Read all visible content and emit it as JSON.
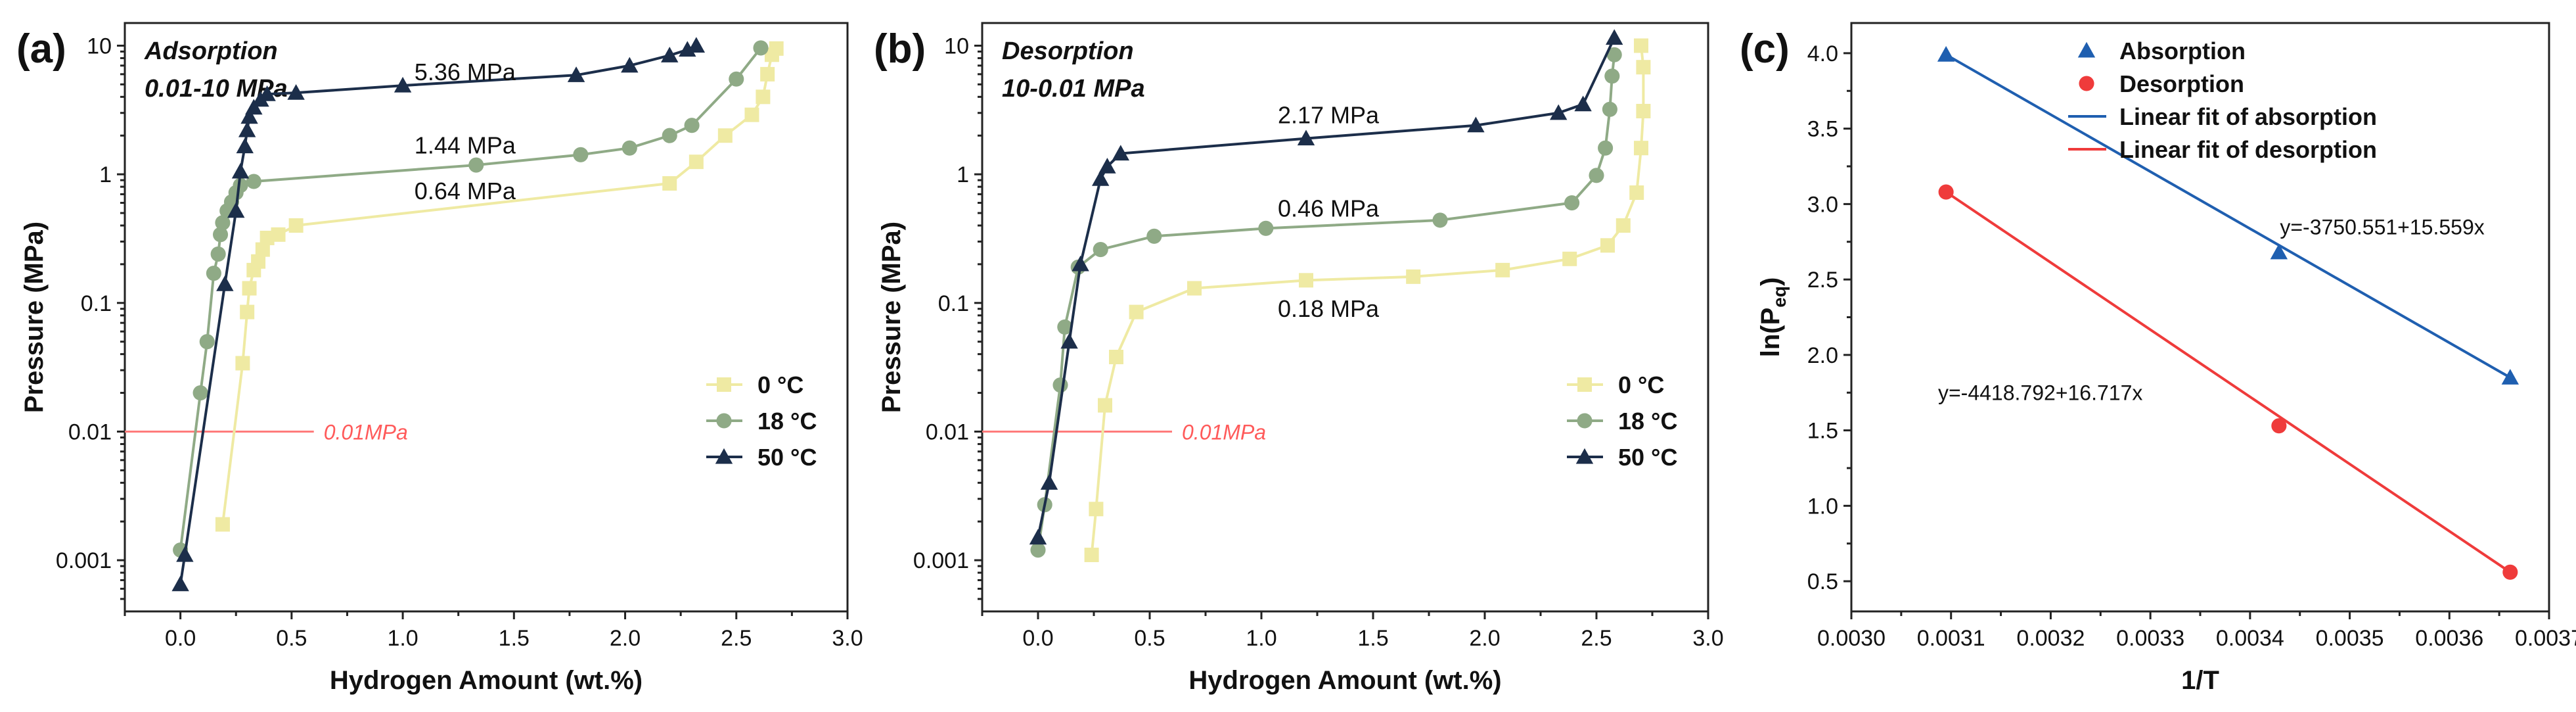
{
  "chart_data": [
    {
      "panel": "(a)",
      "type": "line",
      "title": "Adsorption",
      "subtitle": "0.01-10 MPa",
      "xlabel": "Hydrogen Amount (wt.%)",
      "ylabel": "Pressure (MPa)",
      "xlim": [
        -0.25,
        3.0
      ],
      "ylim": [
        0.0004,
        15
      ],
      "yscale": "log",
      "xticks": [
        "0.0",
        "0.5",
        "1.0",
        "1.5",
        "2.0",
        "2.5",
        "3.0"
      ],
      "yticks": [
        "0.001",
        "0.01",
        "0.1",
        "1",
        "10"
      ],
      "legend": {
        "position": "lower-right",
        "entries": [
          "0 °C",
          "18 °C",
          "50 °C"
        ]
      },
      "reference_line": {
        "y": 0.01,
        "x_range": [
          -0.25,
          0.6
        ],
        "label": "0.01MPa",
        "color": "#ff7b7b"
      },
      "plateau_labels": [
        {
          "text": "5.36 MPa",
          "x": 1.28,
          "y": 5.4
        },
        {
          "text": "1.44 MPa",
          "x": 1.28,
          "y": 1.45
        },
        {
          "text": "0.64 MPa",
          "x": 1.28,
          "y": 0.64
        }
      ],
      "series": [
        {
          "name": "0 °C",
          "color": "#efeaa3",
          "marker": "square",
          "x": [
            0.19,
            0.28,
            0.3,
            0.31,
            0.33,
            0.35,
            0.37,
            0.39,
            0.44,
            0.52,
            2.2,
            2.32,
            2.45,
            2.57,
            2.62,
            2.64,
            2.66,
            2.68
          ],
          "y": [
            0.0019,
            0.034,
            0.085,
            0.13,
            0.18,
            0.21,
            0.26,
            0.32,
            0.34,
            0.4,
            0.85,
            1.25,
            2.0,
            2.9,
            4.0,
            6.0,
            8.5,
            9.5
          ]
        },
        {
          "name": "18 °C",
          "color": "#8faa86",
          "marker": "circle",
          "x": [
            0.0,
            0.09,
            0.12,
            0.15,
            0.17,
            0.18,
            0.19,
            0.21,
            0.23,
            0.25,
            0.27,
            0.33,
            1.33,
            1.8,
            2.02,
            2.2,
            2.3,
            2.5,
            2.61
          ],
          "y": [
            0.0012,
            0.02,
            0.05,
            0.17,
            0.24,
            0.34,
            0.42,
            0.52,
            0.61,
            0.72,
            0.82,
            0.88,
            1.18,
            1.42,
            1.6,
            2.0,
            2.4,
            5.5,
            9.6
          ]
        },
        {
          "name": "50 °C",
          "color": "#1c2e4a",
          "marker": "triangle",
          "x": [
            0.0,
            0.02,
            0.2,
            0.25,
            0.27,
            0.29,
            0.3,
            0.31,
            0.33,
            0.36,
            0.39,
            0.52,
            1.0,
            1.78,
            2.02,
            2.2,
            2.28,
            2.32
          ],
          "y": [
            0.00065,
            0.0011,
            0.14,
            0.52,
            1.05,
            1.65,
            2.2,
            2.8,
            3.3,
            3.8,
            4.2,
            4.3,
            4.9,
            5.9,
            7.0,
            8.4,
            9.3,
            10.0
          ]
        }
      ]
    },
    {
      "panel": "(b)",
      "type": "line",
      "title": "Desorption",
      "subtitle": "10-0.01 MPa",
      "xlabel": "Hydrogen Amount (wt.%)",
      "ylabel": "Pressure (MPa)",
      "xlim": [
        -0.25,
        3.0
      ],
      "ylim": [
        0.0004,
        15
      ],
      "yscale": "log",
      "xticks": [
        "0.0",
        "0.5",
        "1.0",
        "1.5",
        "2.0",
        "2.5",
        "3.0"
      ],
      "yticks": [
        "0.001",
        "0.01",
        "0.1",
        "1",
        "10"
      ],
      "legend": {
        "position": "lower-right",
        "entries": [
          "0 °C",
          "18 °C",
          "50 °C"
        ]
      },
      "reference_line": {
        "y": 0.01,
        "x_range": [
          -0.25,
          0.6
        ],
        "label": "0.01MPa",
        "color": "#ff7b7b"
      },
      "plateau_labels": [
        {
          "text": "2.17 MPa",
          "x": 1.3,
          "y": 2.5
        },
        {
          "text": "0.46 MPa",
          "x": 1.3,
          "y": 0.47
        },
        {
          "text": "0.18 MPa",
          "x": 1.3,
          "y": 0.078
        }
      ],
      "series": [
        {
          "name": "0 °C",
          "color": "#efeaa3",
          "marker": "square",
          "x": [
            0.24,
            0.26,
            0.3,
            0.35,
            0.44,
            0.7,
            1.2,
            1.68,
            2.08,
            2.38,
            2.55,
            2.62,
            2.68,
            2.7,
            2.71,
            2.71,
            2.7
          ],
          "y": [
            0.0011,
            0.0025,
            0.016,
            0.038,
            0.085,
            0.13,
            0.15,
            0.16,
            0.18,
            0.22,
            0.28,
            0.4,
            0.72,
            1.6,
            3.1,
            6.8,
            10.0
          ]
        },
        {
          "name": "18 °C",
          "color": "#8faa86",
          "marker": "circle",
          "x": [
            0.0,
            0.03,
            0.1,
            0.12,
            0.18,
            0.28,
            0.52,
            1.02,
            1.8,
            2.39,
            2.5,
            2.54,
            2.56,
            2.57,
            2.58
          ],
          "y": [
            0.0012,
            0.0027,
            0.023,
            0.065,
            0.19,
            0.26,
            0.33,
            0.38,
            0.44,
            0.6,
            0.98,
            1.6,
            3.2,
            5.8,
            8.5
          ]
        },
        {
          "name": "50 °C",
          "color": "#1c2e4a",
          "marker": "triangle",
          "x": [
            0.0,
            0.05,
            0.14,
            0.19,
            0.28,
            0.31,
            0.37,
            1.2,
            1.96,
            2.33,
            2.44,
            2.58
          ],
          "y": [
            0.0015,
            0.004,
            0.05,
            0.2,
            0.92,
            1.15,
            1.45,
            1.9,
            2.4,
            3.0,
            3.5,
            11.5
          ]
        }
      ]
    },
    {
      "panel": "(c)",
      "type": "scatter",
      "title": "",
      "xlabel": "1/T",
      "ylabel_main": "ln(P",
      "ylabel_sub": "eq",
      "ylabel_tail": ")",
      "xlim": [
        0.003,
        0.0037
      ],
      "ylim": [
        0.3,
        4.2
      ],
      "xticks": [
        "0.0030",
        "0.0031",
        "0.0032",
        "0.0033",
        "0.0034",
        "0.0035",
        "0.0036",
        "0.0037"
      ],
      "yticks": [
        "0.5",
        "1.0",
        "1.5",
        "2.0",
        "2.5",
        "3.0",
        "3.5",
        "4.0"
      ],
      "legend": {
        "position": "top",
        "entries": [
          "Absorption",
          "Desorption",
          "Linear fit of absorption",
          "Linear fit of desorption"
        ]
      },
      "series": [
        {
          "name": "Absorption",
          "color": "#1f5fb0",
          "marker": "triangle",
          "x": [
            0.003095,
            0.003429,
            0.003661
          ],
          "y": [
            3.99,
            2.68,
            1.85
          ]
        },
        {
          "name": "Desorption",
          "color": "#ef3b3b",
          "marker": "circle",
          "x": [
            0.003095,
            0.003429,
            0.003661
          ],
          "y": [
            3.08,
            1.53,
            0.56
          ]
        }
      ],
      "fits": [
        {
          "name": "Linear fit of absorption",
          "color": "#1f5fb0",
          "x": [
            0.003095,
            0.003661
          ],
          "y": [
            3.99,
            1.85
          ],
          "equation": "y=-3750.551+15.559x"
        },
        {
          "name": "Linear fit of desorption",
          "color": "#ef3b3b",
          "x": [
            0.003095,
            0.003661
          ],
          "y": [
            3.08,
            0.56
          ],
          "equation": "y=-4418.792+16.717x"
        }
      ]
    }
  ]
}
